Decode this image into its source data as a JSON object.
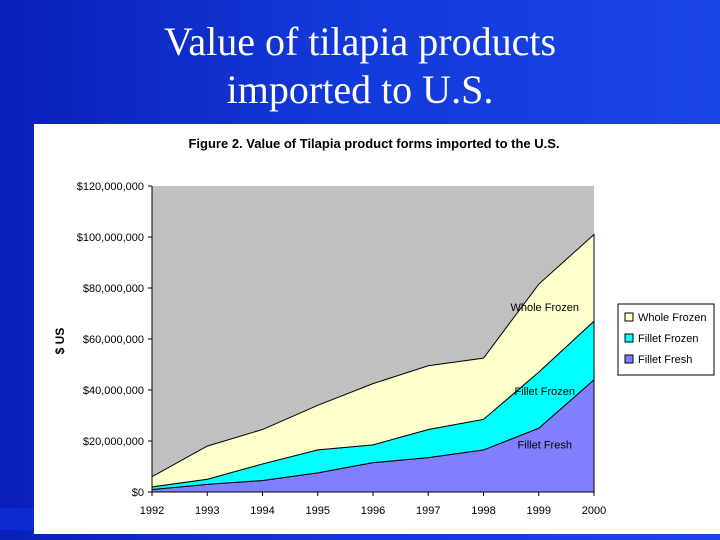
{
  "slide": {
    "title_line1": "Value of tilapia products",
    "title_line2": "imported to U.S."
  },
  "chart_data": {
    "type": "area",
    "stacked": true,
    "title": "Figure 2.  Value of Tilapia product forms imported to the U.S.",
    "xlabel": "",
    "ylabel": "$ US",
    "x": [
      "1992",
      "1993",
      "1994",
      "1995",
      "1996",
      "1997",
      "1998",
      "1999",
      "2000"
    ],
    "ylim": [
      0,
      120000000
    ],
    "yticks": [
      0,
      20000000,
      40000000,
      60000000,
      80000000,
      100000000,
      120000000
    ],
    "ytick_labels": [
      "$0",
      "$20,000,000",
      "$40,000,000",
      "$60,000,000",
      "$80,000,000",
      "$100,000,000",
      "$120,000,000"
    ],
    "grid": false,
    "legend_position": "right",
    "plot_background": "#c0c0c0",
    "series": [
      {
        "name": "Fillet Fresh",
        "color": "#8080ff",
        "values": [
          1000000,
          3000000,
          4500000,
          7500000,
          11500000,
          13500000,
          16500000,
          25000000,
          44000000
        ]
      },
      {
        "name": "Fillet Frozen",
        "color": "#00ffff",
        "values": [
          1000000,
          2000000,
          6500000,
          9000000,
          7000000,
          11000000,
          12000000,
          22000000,
          23000000
        ]
      },
      {
        "name": "Whole Frozen",
        "color": "#ffffcc",
        "values": [
          4000000,
          13000000,
          13500000,
          17500000,
          24000000,
          25000000,
          24000000,
          34500000,
          34000000
        ]
      }
    ],
    "legend": [
      "Whole Frozen",
      "Fillet Frozen",
      "Fillet Fresh"
    ],
    "annotations": [
      {
        "text": "Whole Frozen",
        "x": "1999",
        "y": 71000000
      },
      {
        "text": "Fillet Frozen",
        "x": "1999",
        "y": 38000000
      },
      {
        "text": "Fillet Fresh",
        "x": "1999",
        "y": 17000000
      }
    ]
  }
}
